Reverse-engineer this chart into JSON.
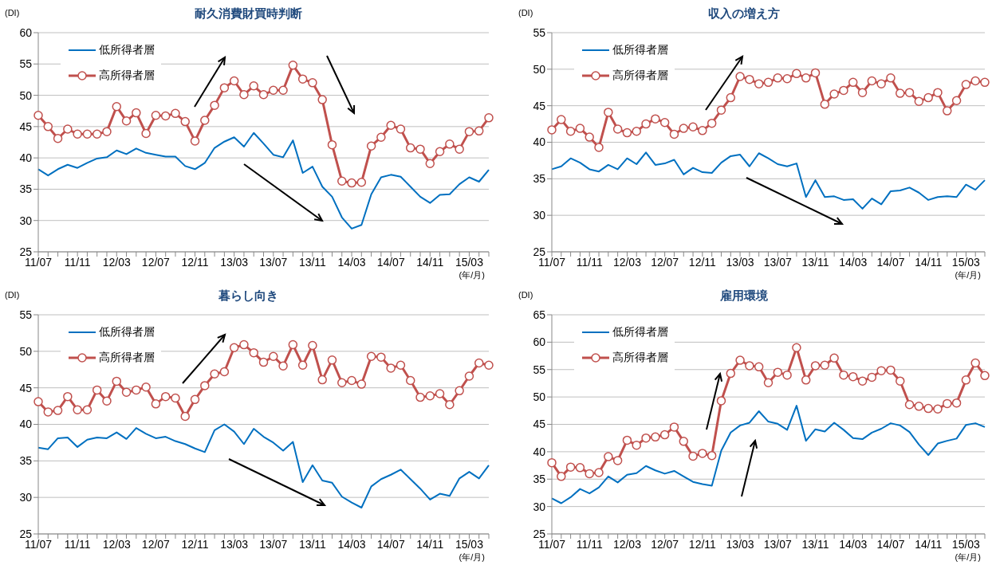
{
  "chart_data": [
    {
      "type": "line",
      "title": "耐久消費財買時判断",
      "ylabel": "(DI)",
      "xlabel": "(年/月)",
      "categories": [
        "11/07",
        null,
        null,
        null,
        "11/11",
        null,
        null,
        null,
        "12/03",
        null,
        null,
        null,
        "12/07",
        null,
        null,
        null,
        "12/11",
        null,
        null,
        null,
        "13/03",
        null,
        null,
        null,
        "13/07",
        null,
        null,
        null,
        "13/11",
        null,
        null,
        null,
        "14/03",
        null,
        null,
        null,
        "14/07",
        null,
        null,
        null,
        "14/11",
        null,
        null,
        null,
        "15/03",
        null,
        null
      ],
      "ylim": [
        25,
        60
      ],
      "yticks": [
        25,
        30,
        35,
        40,
        45,
        50,
        55,
        60
      ],
      "grid": "y",
      "legend": "top left",
      "series": [
        {
          "name": "低所得者層",
          "color": "#0070c0",
          "marker": "none",
          "values": [
            38.2,
            37.2,
            38.2,
            38.9,
            38.4,
            39.2,
            39.9,
            40.1,
            41.2,
            40.6,
            41.5,
            40.8,
            40.5,
            40.2,
            40.2,
            38.7,
            38.2,
            39.2,
            41.6,
            42.6,
            43.3,
            41.8,
            44.0,
            42.3,
            40.5,
            40.1,
            42.8,
            37.6,
            38.6,
            35.4,
            33.8,
            30.5,
            28.7,
            29.3,
            34.2,
            36.9,
            37.3,
            37.0,
            35.4,
            33.8,
            32.8,
            34.1,
            34.2,
            35.8,
            36.9,
            36.2,
            38.1
          ]
        },
        {
          "name": "高所得者層",
          "color": "#c0504d",
          "marker": "circle",
          "values": [
            46.8,
            45.0,
            43.1,
            44.6,
            43.8,
            43.8,
            43.8,
            44.2,
            48.2,
            45.9,
            47.2,
            43.9,
            46.8,
            46.7,
            47.1,
            45.8,
            42.7,
            46.0,
            48.4,
            51.2,
            52.3,
            50.1,
            51.5,
            50.1,
            50.8,
            50.8,
            54.8,
            52.6,
            52.0,
            49.3,
            42.1,
            36.3,
            36.0,
            36.1,
            41.9,
            43.3,
            45.2,
            44.6,
            41.6,
            41.4,
            39.1,
            41.0,
            42.2,
            41.4,
            44.2,
            44.3,
            46.4
          ]
        }
      ]
    },
    {
      "type": "line",
      "title": "収入の増え方",
      "ylabel": "(DI)",
      "xlabel": "(年/月)",
      "categories": [
        "11/07",
        null,
        null,
        null,
        "11/11",
        null,
        null,
        null,
        "12/03",
        null,
        null,
        null,
        "12/07",
        null,
        null,
        null,
        "12/11",
        null,
        null,
        null,
        "13/03",
        null,
        null,
        null,
        "13/07",
        null,
        null,
        null,
        "13/11",
        null,
        null,
        null,
        "14/03",
        null,
        null,
        null,
        "14/07",
        null,
        null,
        null,
        "14/11",
        null,
        null,
        null,
        "15/03",
        null,
        null
      ],
      "ylim": [
        25,
        55
      ],
      "yticks": [
        25,
        30,
        35,
        40,
        45,
        50,
        55
      ],
      "grid": "y",
      "legend": "top left",
      "series": [
        {
          "name": "低所得者層",
          "color": "#0070c0",
          "marker": "none",
          "values": [
            36.3,
            36.7,
            37.8,
            37.2,
            36.3,
            36.0,
            36.9,
            36.3,
            37.8,
            37.0,
            38.6,
            36.9,
            37.1,
            37.6,
            35.6,
            36.5,
            35.9,
            35.8,
            37.2,
            38.1,
            38.3,
            36.7,
            38.5,
            37.8,
            37.0,
            36.7,
            37.1,
            32.5,
            34.8,
            32.5,
            32.6,
            32.1,
            32.2,
            30.9,
            32.3,
            31.5,
            33.3,
            33.4,
            33.8,
            33.1,
            32.1,
            32.5,
            32.6,
            32.5,
            34.2,
            33.5,
            34.8
          ]
        },
        {
          "name": "高所得者層",
          "color": "#c0504d",
          "marker": "circle",
          "values": [
            41.7,
            43.1,
            41.5,
            41.9,
            40.7,
            39.3,
            44.1,
            41.8,
            41.3,
            41.5,
            42.5,
            43.2,
            42.7,
            41.1,
            41.9,
            42.1,
            41.6,
            42.6,
            44.4,
            46.1,
            49.0,
            48.6,
            48.0,
            48.2,
            48.8,
            48.7,
            49.4,
            48.8,
            49.5,
            45.2,
            46.6,
            47.1,
            48.2,
            46.8,
            48.4,
            48.0,
            48.8,
            46.7,
            46.8,
            45.6,
            46.1,
            46.8,
            44.3,
            45.7,
            47.9,
            48.4,
            48.2
          ]
        }
      ]
    },
    {
      "type": "line",
      "title": "暮らし向き",
      "ylabel": "(DI)",
      "xlabel": "(年/月)",
      "categories": [
        "11/07",
        null,
        null,
        null,
        "11/11",
        null,
        null,
        null,
        "12/03",
        null,
        null,
        null,
        "12/07",
        null,
        null,
        null,
        "12/11",
        null,
        null,
        null,
        "13/03",
        null,
        null,
        null,
        "13/07",
        null,
        null,
        null,
        "13/11",
        null,
        null,
        null,
        "14/03",
        null,
        null,
        null,
        "14/07",
        null,
        null,
        null,
        "14/11",
        null,
        null,
        null,
        "15/03",
        null,
        null
      ],
      "ylim": [
        25,
        55
      ],
      "yticks": [
        25,
        30,
        35,
        40,
        45,
        50,
        55
      ],
      "grid": "y",
      "legend": "top left",
      "series": [
        {
          "name": "低所得者層",
          "color": "#0070c0",
          "marker": "none",
          "values": [
            36.8,
            36.6,
            38.1,
            38.2,
            36.9,
            37.9,
            38.2,
            38.1,
            38.9,
            38.0,
            39.5,
            38.7,
            38.1,
            38.3,
            37.7,
            37.3,
            36.7,
            36.2,
            39.2,
            40.0,
            39.0,
            37.3,
            39.4,
            38.3,
            37.5,
            36.4,
            37.6,
            32.1,
            34.4,
            32.3,
            32.0,
            30.1,
            29.3,
            28.6,
            31.5,
            32.5,
            33.1,
            33.8,
            32.5,
            31.2,
            29.7,
            30.5,
            30.2,
            32.6,
            33.5,
            32.6,
            34.4
          ]
        },
        {
          "name": "高所得者層",
          "color": "#c0504d",
          "marker": "circle",
          "values": [
            43.1,
            41.7,
            41.9,
            43.8,
            42.0,
            42.0,
            44.7,
            43.2,
            45.9,
            44.4,
            44.7,
            45.1,
            42.8,
            43.8,
            43.6,
            41.1,
            43.4,
            45.3,
            46.9,
            47.2,
            50.5,
            50.9,
            49.8,
            48.5,
            49.3,
            48.0,
            50.9,
            48.1,
            50.8,
            46.1,
            48.8,
            45.7,
            46.0,
            45.5,
            49.3,
            49.2,
            47.7,
            48.1,
            46.0,
            43.7,
            43.9,
            44.2,
            42.7,
            44.6,
            46.6,
            48.4,
            48.1
          ]
        }
      ]
    },
    {
      "type": "line",
      "title": "雇用環境",
      "ylabel": "(DI)",
      "xlabel": "(年/月)",
      "categories": [
        "11/07",
        null,
        null,
        null,
        "11/11",
        null,
        null,
        null,
        "12/03",
        null,
        null,
        null,
        "12/07",
        null,
        null,
        null,
        "12/11",
        null,
        null,
        null,
        "13/03",
        null,
        null,
        null,
        "13/07",
        null,
        null,
        null,
        "13/11",
        null,
        null,
        null,
        "14/03",
        null,
        null,
        null,
        "14/07",
        null,
        null,
        null,
        "14/11",
        null,
        null,
        null,
        "15/03",
        null,
        null
      ],
      "ylim": [
        25,
        65
      ],
      "yticks": [
        25,
        30,
        35,
        40,
        45,
        50,
        55,
        60,
        65
      ],
      "grid": "y",
      "legend": "top left",
      "series": [
        {
          "name": "低所得者層",
          "color": "#0070c0",
          "marker": "none",
          "values": [
            31.5,
            30.6,
            31.7,
            33.2,
            32.4,
            33.5,
            35.5,
            34.4,
            35.8,
            36.1,
            37.4,
            36.6,
            36.0,
            36.5,
            35.5,
            34.5,
            34.1,
            33.8,
            40.2,
            43.5,
            44.8,
            45.3,
            47.4,
            45.5,
            45.1,
            44.0,
            48.4,
            42.0,
            44.1,
            43.7,
            45.3,
            44.0,
            42.5,
            42.3,
            43.5,
            44.2,
            45.2,
            44.8,
            43.6,
            41.3,
            39.4,
            41.5,
            42.0,
            42.4,
            44.9,
            45.2,
            44.5
          ]
        },
        {
          "name": "高所得者層",
          "color": "#c0504d",
          "marker": "circle",
          "values": [
            38.0,
            35.5,
            37.2,
            37.1,
            36.0,
            36.2,
            39.1,
            38.4,
            42.1,
            41.2,
            42.5,
            42.7,
            43.1,
            44.5,
            41.9,
            39.2,
            39.7,
            39.3,
            49.3,
            54.3,
            56.7,
            55.7,
            55.5,
            52.6,
            54.5,
            54.0,
            59.0,
            53.1,
            55.7,
            55.8,
            57.1,
            54.0,
            53.7,
            52.9,
            53.6,
            54.8,
            54.9,
            52.9,
            48.6,
            48.3,
            47.9,
            47.8,
            48.8,
            48.9,
            53.1,
            56.2,
            53.9
          ]
        }
      ]
    }
  ]
}
